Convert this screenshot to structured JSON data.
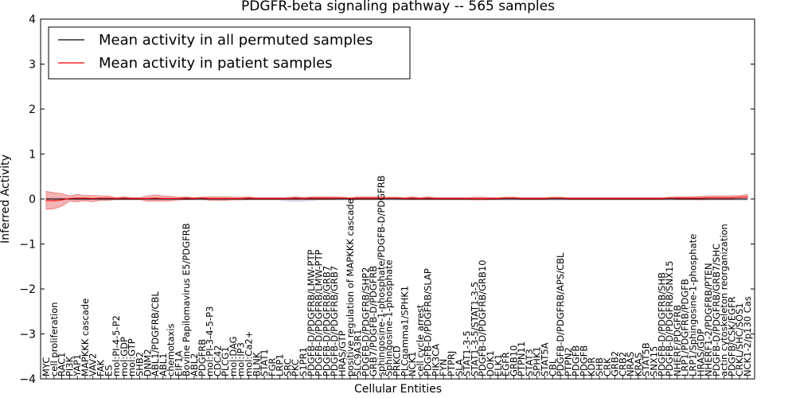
{
  "chart_data": {
    "type": "line",
    "title": "PDGFR-beta signaling pathway -- 565 samples",
    "xlabel": "Cellular Entities",
    "ylabel": "Inferred Activity",
    "ylim": [
      -4,
      4
    ],
    "yticks": [
      "−4",
      "−3",
      "−2",
      "−1",
      "0",
      "1",
      "2",
      "3",
      "4"
    ],
    "legend": {
      "position": "top-left",
      "entries": [
        {
          "name": "Mean activity in all permuted samples",
          "color": "#000000"
        },
        {
          "name": "Mean activity in patient samples",
          "color": "#ff0000"
        }
      ]
    },
    "categories": [
      "MYC",
      "cell proliferation",
      "RAC1",
      "PI3K",
      "YAP1",
      "MAPKKK cascade",
      "VAV2",
      "FAK",
      "ES",
      "mol:PI-4-5-P2",
      "mol:GDP",
      "mol:GTP",
      "SHB2",
      "DNM2",
      "ABL1/PDGFRB/CBL",
      "ABL1",
      "chemotaxis",
      "EIF1A",
      "Bovine Papilomavirus E5/PDGFRB",
      "ABL2",
      "PDGFRB",
      "mol:PI-3-4-5-P3",
      "CDC42",
      "PLCG1",
      "mol:DAG",
      "mol:IP3",
      "mol:Ca2+",
      "BLNK",
      "STAT1",
      "FGR",
      "LRP1",
      "SRC",
      "PKC",
      "S1PR1",
      "PDGFB-D/PDGFRB/LMW-PTP",
      "PDGFB-D/PDGFRB/LMW-PTP",
      "PDGFB-D/PDGFRB/GRB7",
      "PDGFB-D/PDGFRB/GRB7",
      "HRAS/GTP",
      "positive regulation of MAPKKK cascade",
      "SLC9A3R1",
      "PDGFB-D/PDGFRB/SHP2",
      "GRB7/PDGFB-D/PDGFRB",
      "sphingosine-1-phosphate/PDGFB-D/PDGFRB",
      "Sphingosine-1-phosphate",
      "PRKCD",
      "PLCgamma1/SPHK1",
      "NCK1",
      "cell cycle arrest",
      "PDGFB-D/PDGFRB/SLAP",
      "PIK3CA",
      "FYN",
      "PTPRJ",
      "SLA",
      "STAT1-3-5",
      "STAT1-3-5/STAT1-3-5",
      "PDGFB-D/PDGFRB/GRB10",
      "DOK1",
      "ELK1",
      "EGFR",
      "GRB10",
      "PTPN11",
      "STAT3",
      "SPHK1",
      "STAT5A",
      "CBL",
      "PDGFB-D/PDGFRB/APS/CBL",
      "PTPN2",
      "PDGFB",
      "PDGFB",
      "KDR",
      "SHB",
      "CRK",
      "GRB2",
      "CRB2",
      "NRAS",
      "KRAS",
      "STAT5B",
      "SNX15",
      "PDGFB-D/PDGFRB/SHB",
      "PDGFB-D/PDGFRB/SNX15",
      "NHERF/PDGFRB",
      "LRP1/PDGFRB/PDGFB",
      "LRP1/Sphingosine-1-phosphate",
      "HRAS/GDP",
      "NHERF1-2/PDGFRB/PTEN",
      "PDGFB-D/PDGFRB/GRB7/SHC",
      "actin cytoskeleton reorganization",
      "PDGFB/CSK/EGFR",
      "CRKL/SHC/SOS1",
      "NCK1-2/p130 Cas"
    ],
    "series": [
      {
        "name": "Mean activity in patient samples",
        "values": [
          -0.03,
          -0.04,
          -0.02,
          0.01,
          0.02,
          0.02,
          0.01,
          0.02,
          0.02,
          0.01,
          0.02,
          0.01,
          0.01,
          0.01,
          0.02,
          0.01,
          0.01,
          0.01,
          0.02,
          0.01,
          0.02,
          0.01,
          0.01,
          0.01,
          0.01,
          0.01,
          0.02,
          0.01,
          0.01,
          0.01,
          0.01,
          0.01,
          0.02,
          0.01,
          0.02,
          0.02,
          0.02,
          0.02,
          0.02,
          0.01,
          0.02,
          0.02,
          0.02,
          0.02,
          0.02,
          0.02,
          0.01,
          0.02,
          0.01,
          0.02,
          0.01,
          0.01,
          0.01,
          0.01,
          0.01,
          0.01,
          0.01,
          0.01,
          0.01,
          0.02,
          0.02,
          0.01,
          0.01,
          0.01,
          0.01,
          0.02,
          0.02,
          0.01,
          0.01,
          0.01,
          0.01,
          0.01,
          0.01,
          0.01,
          0.01,
          0.01,
          0.01,
          0.01,
          0.01,
          0.01,
          0.02,
          0.02,
          0.02,
          0.02,
          0.02,
          0.03,
          0.03,
          0.03,
          0.03,
          0.04,
          0.05
        ],
        "band": [
          0.2,
          0.18,
          0.14,
          0.06,
          0.08,
          0.06,
          0.07,
          0.05,
          0.05,
          0.02,
          0.03,
          0.02,
          0.02,
          0.06,
          0.07,
          0.06,
          0.05,
          0.03,
          0.03,
          0.02,
          0.02,
          0.04,
          0.04,
          0.04,
          0.03,
          0.03,
          0.03,
          0.02,
          0.02,
          0.02,
          0.02,
          0.02,
          0.03,
          0.02,
          0.03,
          0.03,
          0.03,
          0.03,
          0.02,
          0.02,
          0.03,
          0.03,
          0.03,
          0.03,
          0.02,
          0.02,
          0.02,
          0.03,
          0.02,
          0.03,
          0.02,
          0.02,
          0.02,
          0.02,
          0.02,
          0.03,
          0.03,
          0.02,
          0.02,
          0.02,
          0.02,
          0.02,
          0.02,
          0.02,
          0.02,
          0.02,
          0.02,
          0.02,
          0.02,
          0.02,
          0.02,
          0.02,
          0.02,
          0.02,
          0.02,
          0.02,
          0.02,
          0.02,
          0.02,
          0.02,
          0.02,
          0.03,
          0.03,
          0.03,
          0.04,
          0.04,
          0.04,
          0.04,
          0.04,
          0.04,
          0.05
        ]
      },
      {
        "name": "Mean activity in all permuted samples",
        "values": [
          0,
          0,
          0,
          0,
          0,
          0,
          0,
          0,
          0,
          0,
          0,
          0,
          0,
          0,
          0,
          0,
          0,
          0,
          0,
          0,
          0,
          0,
          0,
          0,
          0,
          0,
          0,
          0,
          0,
          0,
          0,
          0,
          0,
          0,
          0,
          0,
          0,
          0,
          0,
          0,
          0,
          0,
          0,
          0,
          0,
          0,
          0,
          0,
          0,
          0,
          0,
          0,
          0,
          0,
          0,
          0,
          0,
          0,
          0,
          0,
          0,
          0,
          0,
          0,
          0,
          0,
          0,
          0,
          0,
          0,
          0,
          0,
          0,
          0,
          0,
          0,
          0,
          0,
          0,
          0,
          0,
          0,
          0,
          0,
          0,
          0,
          0,
          0,
          0,
          0,
          0
        ],
        "band": [
          0.02,
          0.02,
          0.02,
          0.02,
          0.02,
          0.02,
          0.02,
          0.02,
          0.02,
          0.02,
          0.02,
          0.02,
          0.02,
          0.02,
          0.02,
          0.02,
          0.02,
          0.02,
          0.02,
          0.02,
          0.02,
          0.02,
          0.02,
          0.02,
          0.02,
          0.02,
          0.02,
          0.02,
          0.02,
          0.02,
          0.02,
          0.04,
          0.04,
          0.04,
          0.03,
          0.02,
          0.02,
          0.02,
          0.02,
          0.02,
          0.02,
          0.02,
          0.02,
          0.02,
          0.02,
          0.02,
          0.02,
          0.02,
          0.02,
          0.02,
          0.02,
          0.02,
          0.02,
          0.02,
          0.02,
          0.02,
          0.02,
          0.02,
          0.02,
          0.02,
          0.02,
          0.02,
          0.02,
          0.02,
          0.02,
          0.02,
          0.02,
          0.02,
          0.02,
          0.02,
          0.02,
          0.02,
          0.02,
          0.02,
          0.02,
          0.02,
          0.02,
          0.02,
          0.02,
          0.02,
          0.02,
          0.02,
          0.02,
          0.02,
          0.02,
          0.02,
          0.02,
          0.02,
          0.02,
          0.02,
          0.02
        ]
      }
    ]
  }
}
